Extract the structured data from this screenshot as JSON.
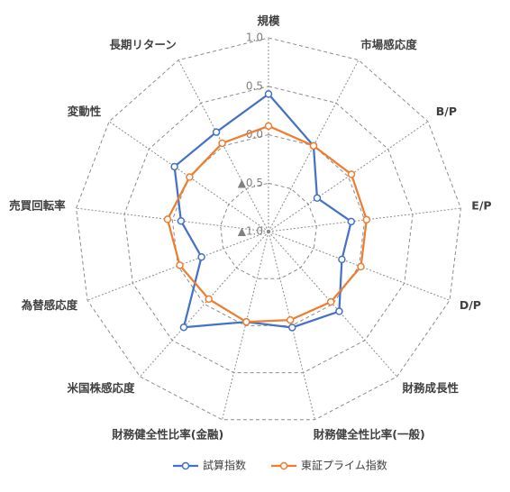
{
  "chart_data": {
    "type": "radar",
    "categories": [
      "規模",
      "市場感応度",
      "B/P",
      "E/P",
      "D/P",
      "財務成長性",
      "財務健全性比率(一般)",
      "財務健全性比率(金融)",
      "米国株感応度",
      "為替感応度",
      "売買回転率",
      "変動性",
      "長期リターン"
    ],
    "ylim": [
      -1.0,
      1.0
    ],
    "yticks": [
      {
        "value": -1.0,
        "label": "▲1.0"
      },
      {
        "value": -0.5,
        "label": "▲0.5"
      },
      {
        "value": 0.0,
        "label": "0.0"
      },
      0.5,
      {
        "value": 1.0,
        "label": "1.0"
      }
    ],
    "grid": true,
    "legend": "bottom",
    "series": [
      {
        "name": "試算指数",
        "color": "#4472c4",
        "values": [
          0.42,
          0.0,
          -0.39,
          -0.14,
          -0.19,
          0.1,
          0.02,
          -0.04,
          0.32,
          -0.26,
          -0.09,
          0.18,
          0.16
        ]
      },
      {
        "name": "東証プライム指数",
        "color": "#ed7d31",
        "values": [
          0.09,
          0.0,
          0.04,
          0.02,
          0.02,
          -0.03,
          -0.06,
          -0.04,
          -0.07,
          -0.02,
          0.05,
          -0.01,
          0.03
        ]
      }
    ]
  }
}
